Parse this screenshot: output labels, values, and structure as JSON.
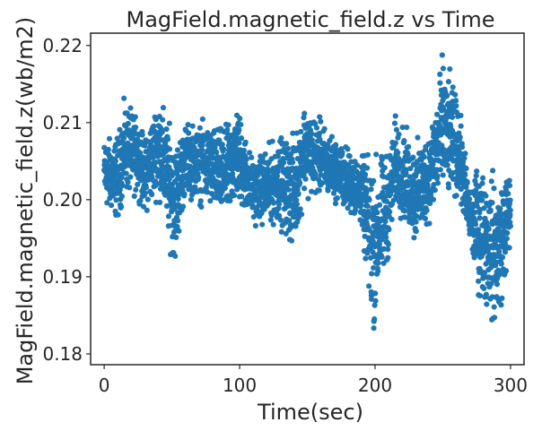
{
  "chart_data": {
    "type": "scatter",
    "title": "MagField.magnetic_field.z vs Time",
    "xlabel": "Time(sec)",
    "ylabel": "MagField.magnetic_field.z(wb/m2)",
    "xlim": [
      -10,
      310
    ],
    "ylim": [
      0.1786,
      0.2216
    ],
    "xticks": [
      0,
      100,
      200,
      300
    ],
    "yticks": [
      0.18,
      0.19,
      0.2,
      0.21,
      0.22
    ],
    "xtick_labels": [
      "0",
      "100",
      "200",
      "300"
    ],
    "ytick_labels": [
      "0.18",
      "0.19",
      "0.20",
      "0.21",
      "0.22"
    ],
    "grid": false,
    "legend": "none",
    "marker_color": "#1f77b4",
    "series": [
      {
        "x_range": [
          0,
          300
        ],
        "n_points": 3000,
        "envelope": [
          {
            "x": 0,
            "ymin": 0.1985,
            "ymax": 0.2085
          },
          {
            "x": 10,
            "ymin": 0.1965,
            "ymax": 0.209
          },
          {
            "x": 15,
            "ymin": 0.2,
            "ymax": 0.2135
          },
          {
            "x": 25,
            "ymin": 0.2,
            "ymax": 0.211
          },
          {
            "x": 30,
            "ymin": 0.1975,
            "ymax": 0.2085
          },
          {
            "x": 40,
            "ymin": 0.2,
            "ymax": 0.2145
          },
          {
            "x": 52,
            "ymin": 0.1905,
            "ymax": 0.2085
          },
          {
            "x": 60,
            "ymin": 0.2,
            "ymax": 0.2105
          },
          {
            "x": 75,
            "ymin": 0.1985,
            "ymax": 0.2105
          },
          {
            "x": 90,
            "ymin": 0.1965,
            "ymax": 0.21
          },
          {
            "x": 98,
            "ymin": 0.1985,
            "ymax": 0.2135
          },
          {
            "x": 110,
            "ymin": 0.1965,
            "ymax": 0.2055
          },
          {
            "x": 130,
            "ymin": 0.196,
            "ymax": 0.209
          },
          {
            "x": 140,
            "ymin": 0.1925,
            "ymax": 0.209
          },
          {
            "x": 148,
            "ymin": 0.2,
            "ymax": 0.2135
          },
          {
            "x": 170,
            "ymin": 0.1995,
            "ymax": 0.2085
          },
          {
            "x": 190,
            "ymin": 0.196,
            "ymax": 0.206
          },
          {
            "x": 198,
            "ymin": 0.181,
            "ymax": 0.207
          },
          {
            "x": 210,
            "ymin": 0.192,
            "ymax": 0.207
          },
          {
            "x": 215,
            "ymin": 0.1985,
            "ymax": 0.2115
          },
          {
            "x": 230,
            "ymin": 0.193,
            "ymax": 0.208
          },
          {
            "x": 240,
            "ymin": 0.1965,
            "ymax": 0.21
          },
          {
            "x": 250,
            "ymin": 0.1985,
            "ymax": 0.22
          },
          {
            "x": 262,
            "ymin": 0.1995,
            "ymax": 0.213
          },
          {
            "x": 270,
            "ymin": 0.193,
            "ymax": 0.202
          },
          {
            "x": 276,
            "ymin": 0.187,
            "ymax": 0.2055
          },
          {
            "x": 290,
            "ymin": 0.1815,
            "ymax": 0.204
          },
          {
            "x": 300,
            "ymin": 0.193,
            "ymax": 0.205
          }
        ]
      }
    ]
  }
}
